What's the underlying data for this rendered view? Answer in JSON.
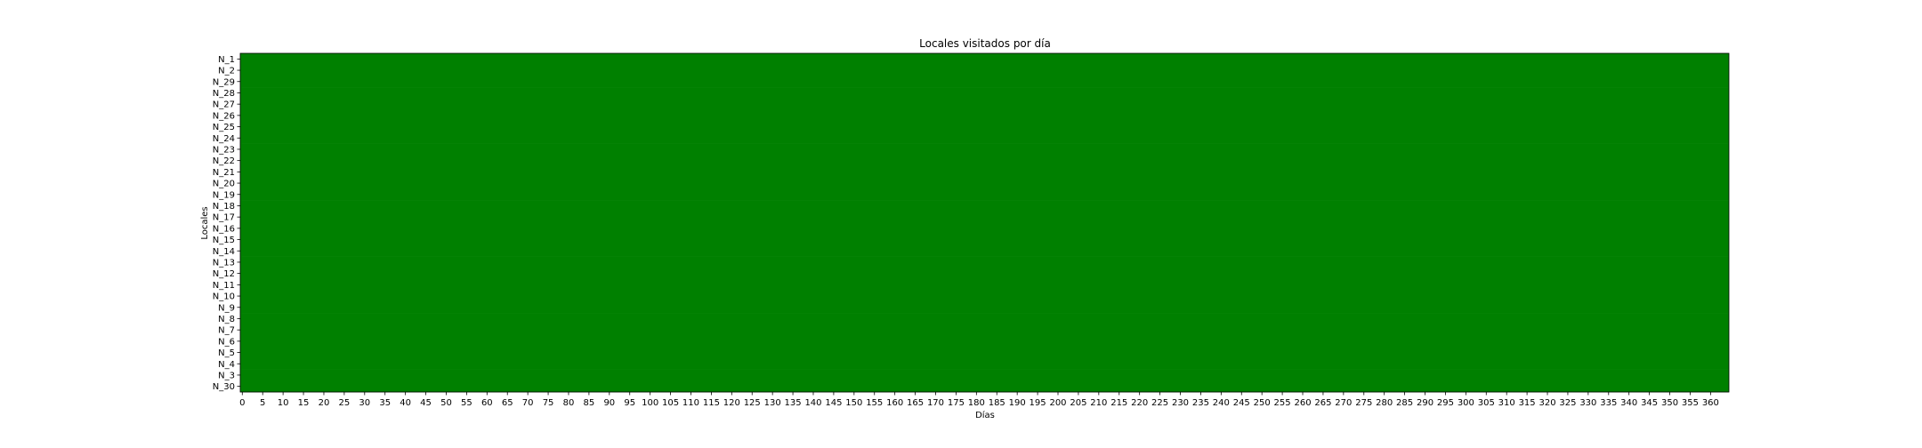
{
  "chart_data": {
    "type": "heatmap",
    "title": "Locales visitados por día",
    "xlabel": "Días",
    "ylabel": "Locales",
    "x_start": 0,
    "x_end": 364,
    "x_tick_step": 5,
    "y_categories": [
      "N_1",
      "N_2",
      "N_29",
      "N_28",
      "N_27",
      "N_26",
      "N_25",
      "N_24",
      "N_23",
      "N_22",
      "N_21",
      "N_20",
      "N_19",
      "N_18",
      "N_17",
      "N_16",
      "N_15",
      "N_14",
      "N_13",
      "N_12",
      "N_11",
      "N_10",
      "N_9",
      "N_8",
      "N_7",
      "N_6",
      "N_5",
      "N_4",
      "N_3",
      "N_30"
    ],
    "cell_value": 1,
    "cell_color": "#008000",
    "grid": false,
    "legend": "none"
  }
}
